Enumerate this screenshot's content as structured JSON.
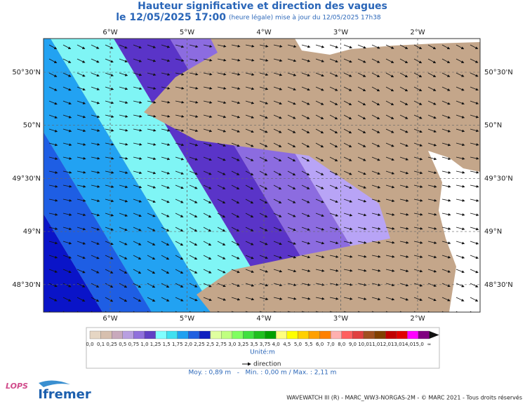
{
  "title": "Hauteur significative et direction des vagues",
  "subtitle": {
    "date": "le 12/05/2025 17:00",
    "note": "(heure légale) mise à jour du 12/05/2025 17h38"
  },
  "map": {
    "lon_labels": [
      "6°W",
      "5°W",
      "4°W",
      "3°W",
      "2°W"
    ],
    "lat_labels": [
      "50°30'N",
      "50°N",
      "49°30'N",
      "49°N",
      "48°30'N"
    ]
  },
  "colorbar": {
    "labels": [
      "0,0",
      "0,1",
      "0,25",
      "0,5",
      "0,75",
      "1,0",
      "1,25",
      "1,5",
      "1,75",
      "2,0",
      "2,25",
      "2,5",
      "2,75",
      "3,0",
      "3,25",
      "3,5",
      "3,75",
      "4,0",
      "4,5",
      "5,0",
      "5,5",
      "6,0",
      "7,0",
      "8,0",
      "9,0",
      "10,0",
      "11,0",
      "12,0",
      "13,0",
      "14,0",
      "15,0",
      "∞"
    ],
    "colors": [
      "#e6d6c4",
      "#d6bfae",
      "#c8a9bc",
      "#b89fe0",
      "#9070dc",
      "#6040c4",
      "#80ffff",
      "#40e0f0",
      "#20a0f0",
      "#2060e0",
      "#1020c0",
      "#e0ffa0",
      "#c0ff80",
      "#80ff60",
      "#40e040",
      "#20c020",
      "#00a000",
      "#ffff80",
      "#ffff00",
      "#ffd000",
      "#ffa000",
      "#ff8000",
      "#ffb0b0",
      "#ff6060",
      "#e04040",
      "#a05020",
      "#804000",
      "#c00000",
      "#e00000",
      "#ff00ff",
      "#800080"
    ],
    "unit": "Unité:m"
  },
  "legend": {
    "direction": "direction",
    "stats": "Moy. : 0,89 m   -   Min. : 0,00 m / Max. : 2,11 m"
  },
  "footer": {
    "credits": "WAVEWATCH III (R) - MARC_WW3-NORGAS-2M - © MARC 2021 - Tous droits réservés",
    "logos": [
      "LOPS",
      "Ifremer"
    ]
  }
}
